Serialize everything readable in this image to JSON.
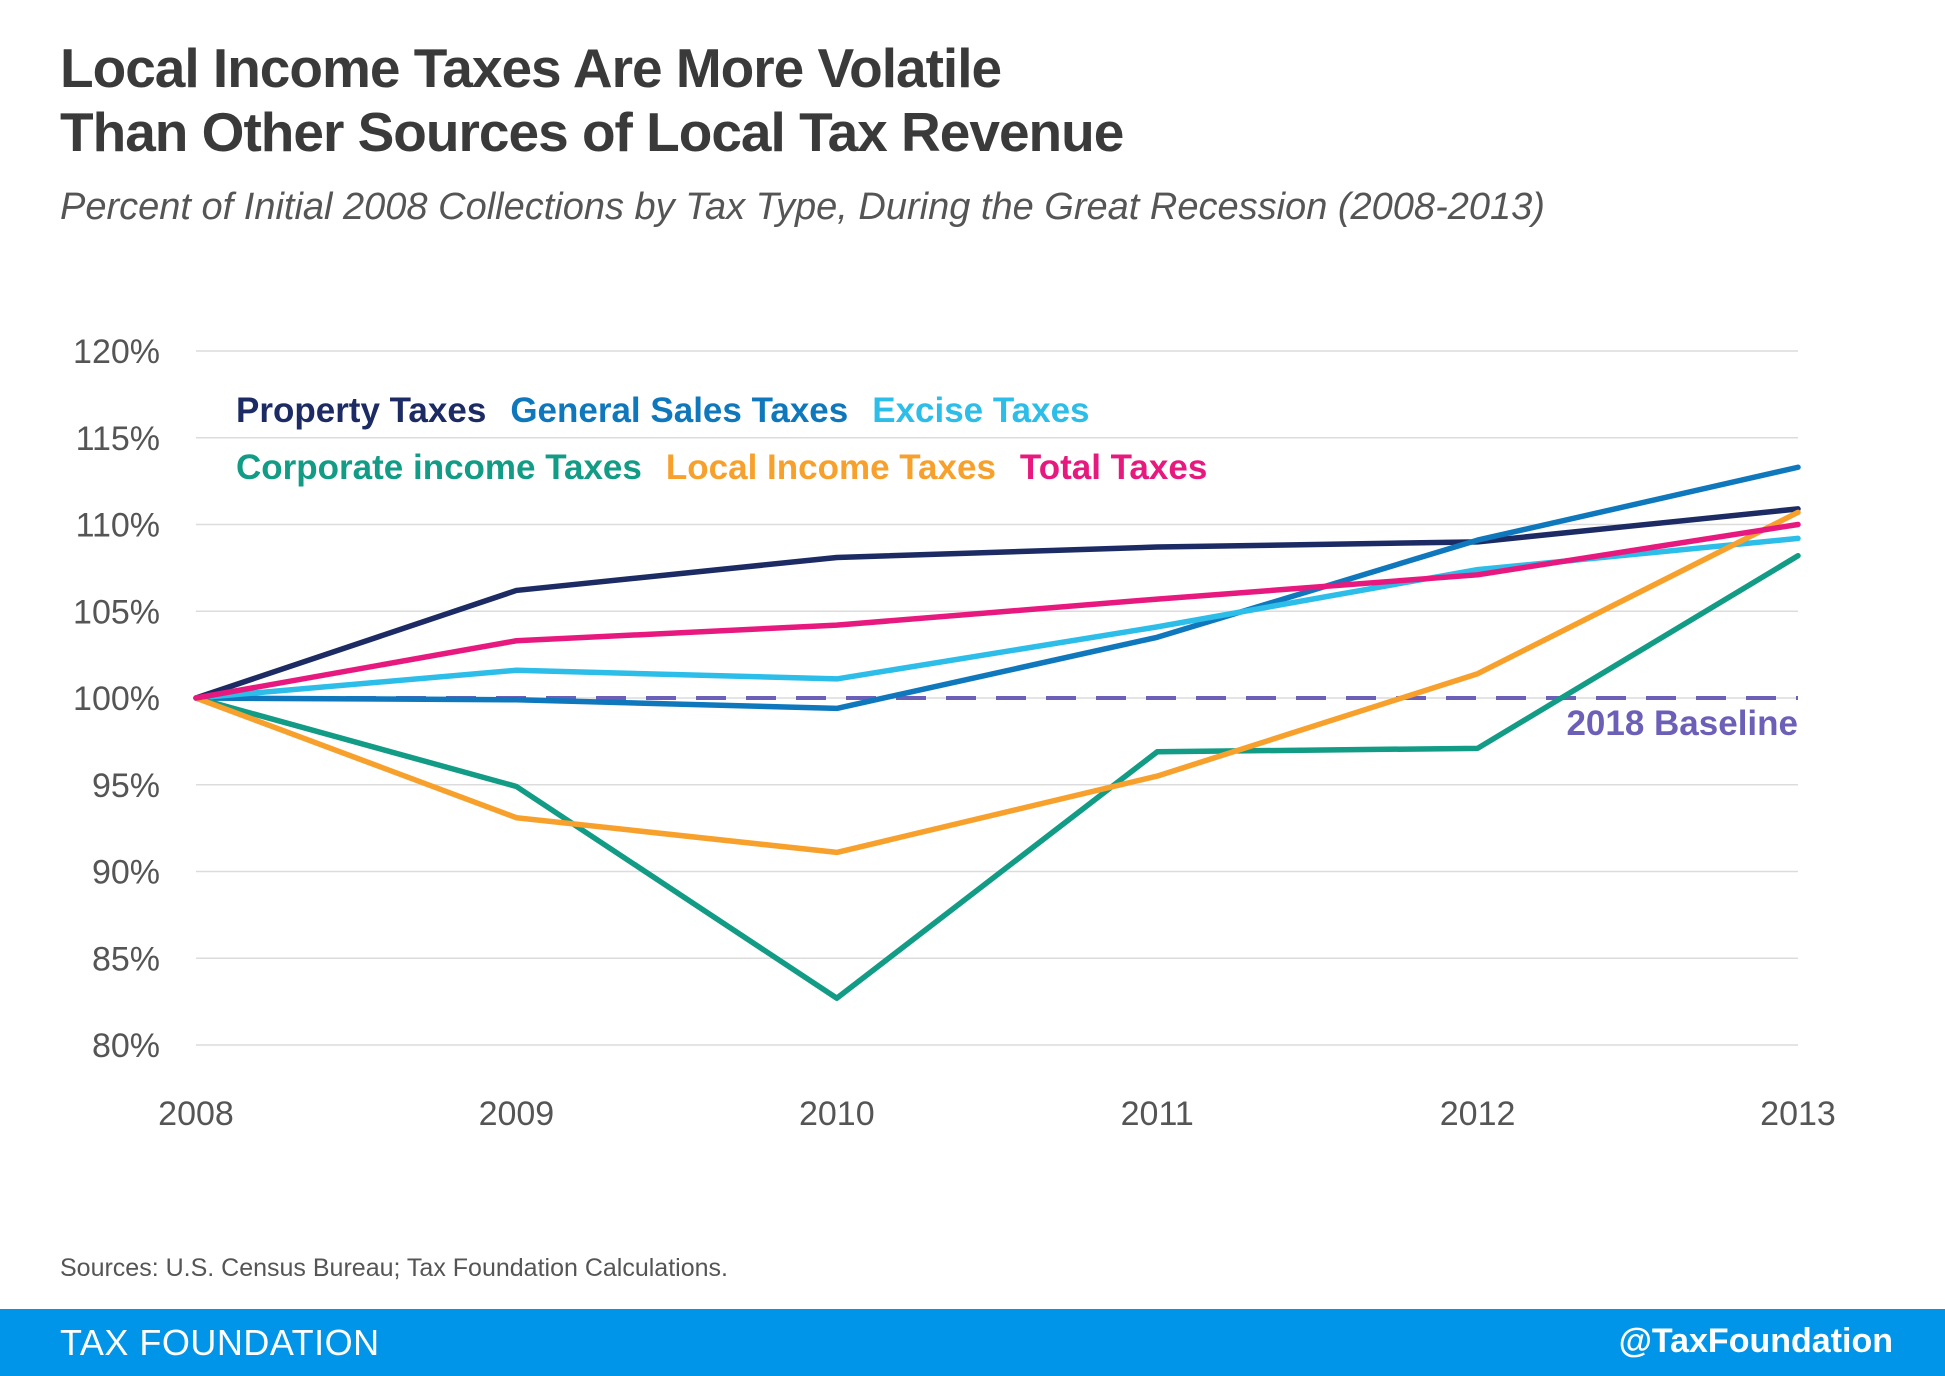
{
  "title_line1": "Local Income Taxes Are More Volatile",
  "title_line2": "Than Other Sources of Local Tax Revenue",
  "subtitle": "Percent of Initial 2008 Collections by Tax Type, During the Great Recession (2008-2013)",
  "sources": "Sources: U.S. Census Bureau; Tax Foundation Calculations.",
  "footer": {
    "brand": "TAX FOUNDATION",
    "handle": "@TaxFoundation",
    "color": "#0095e8"
  },
  "chart_data": {
    "type": "line",
    "title": "Local Income Taxes Are More Volatile Than Other Sources of Local Tax Revenue",
    "xlabel": "",
    "ylabel": "",
    "x": [
      "2008",
      "2009",
      "2010",
      "2011",
      "2012",
      "2013"
    ],
    "ylim": [
      80,
      120
    ],
    "yticks": [
      80,
      85,
      90,
      95,
      100,
      105,
      110,
      115,
      120
    ],
    "ytick_labels": [
      "80%",
      "85%",
      "90%",
      "95%",
      "100%",
      "105%",
      "110%",
      "115%",
      "120%"
    ],
    "grid": true,
    "legend_position": "top-left",
    "series": [
      {
        "name": "Property Taxes",
        "color": "#1c2b63",
        "values": [
          100,
          106.2,
          108.1,
          108.7,
          109.0,
          110.9
        ]
      },
      {
        "name": "General Sales Taxes",
        "color": "#0f78bd",
        "values": [
          100,
          99.9,
          99.4,
          103.5,
          109.1,
          113.3
        ]
      },
      {
        "name": "Excise Taxes",
        "color": "#2cbde8",
        "values": [
          100,
          101.6,
          101.1,
          104.1,
          107.4,
          109.2
        ]
      },
      {
        "name": "Corporate income Taxes",
        "color": "#129b85",
        "values": [
          100,
          94.9,
          82.7,
          96.9,
          97.1,
          108.2
        ]
      },
      {
        "name": "Local Income Taxes",
        "color": "#f7a12c",
        "values": [
          100,
          93.1,
          91.1,
          95.5,
          101.4,
          110.7
        ]
      },
      {
        "name": "Total Taxes",
        "color": "#e8197e",
        "values": [
          100,
          103.3,
          104.2,
          105.7,
          107.1,
          110.0
        ]
      }
    ],
    "baseline": {
      "label": "2018 Baseline",
      "value": 100,
      "color": "#6c5fb8"
    }
  }
}
